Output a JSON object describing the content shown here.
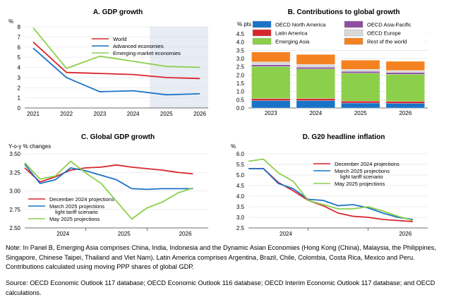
{
  "chart_data": [
    {
      "id": "A",
      "type": "line",
      "title": "A. GDP growth",
      "ylabel": "%",
      "ylim": [
        0,
        8
      ],
      "yticks": [
        0,
        1,
        2,
        3,
        4,
        5,
        6,
        7,
        8
      ],
      "x": [
        "2021",
        "2022",
        "2023",
        "2024",
        "2025",
        "2026"
      ],
      "projection_shading_from": "2025",
      "legend_position": "top-right",
      "series": [
        {
          "name": "World",
          "color": "#d7262e",
          "values": [
            6.5,
            3.5,
            3.4,
            3.3,
            3.0,
            2.9
          ]
        },
        {
          "name": "Advanced economies",
          "color": "#1a73c7",
          "values": [
            5.9,
            3.0,
            1.6,
            1.7,
            1.3,
            1.4
          ]
        },
        {
          "name": "Emerging-market economies",
          "color": "#8ccf4a",
          "values": [
            7.9,
            3.9,
            5.1,
            4.6,
            4.1,
            4.0
          ]
        }
      ]
    },
    {
      "id": "B",
      "type": "bar",
      "stacked": true,
      "title": "B. Contributions to global growth",
      "ylabel": "% pts",
      "ylim": [
        0,
        4.5
      ],
      "yticks": [
        0.0,
        0.5,
        1.0,
        1.5,
        2.0,
        2.5,
        3.0,
        3.5,
        4.0,
        4.5
      ],
      "categories": [
        "2023",
        "2024",
        "2025",
        "2026"
      ],
      "legend_position": "top",
      "series": [
        {
          "name": "OECD North America",
          "color": "#1a73c7",
          "values": [
            0.45,
            0.45,
            0.3,
            0.28
          ]
        },
        {
          "name": "Latin America",
          "color": "#d7262e",
          "values": [
            0.12,
            0.12,
            0.12,
            0.12
          ]
        },
        {
          "name": "Emerging Asia",
          "color": "#8ccf4a",
          "values": [
            1.95,
            1.8,
            1.7,
            1.65
          ]
        },
        {
          "name": "OECD Asia-Pacific",
          "color": "#8e4fa0",
          "values": [
            0.1,
            0.1,
            0.1,
            0.1
          ]
        },
        {
          "name": "OECD Europe",
          "color": "#d9d9d9",
          "values": [
            0.18,
            0.18,
            0.13,
            0.13
          ]
        },
        {
          "name": "Rest of the world",
          "color": "#f58220",
          "values": [
            0.6,
            0.6,
            0.55,
            0.55
          ]
        }
      ]
    },
    {
      "id": "C",
      "type": "line",
      "title": "C. Global GDP growth",
      "ylabel": "Y-o-y % changes",
      "ylim": [
        2.5,
        3.5
      ],
      "yticks": [
        2.5,
        2.75,
        3.0,
        3.25,
        3.5
      ],
      "x_range": [
        0,
        12
      ],
      "x_tick_labels": [
        "2024",
        "2025",
        "2026"
      ],
      "legend_position": "bottom-left",
      "series": [
        {
          "name": "December 2024 projections",
          "color": "#d7262e",
          "x": [
            0,
            1,
            2,
            3,
            4,
            5,
            6,
            7,
            8,
            9,
            10,
            11
          ],
          "values": [
            3.31,
            3.12,
            3.19,
            3.28,
            3.31,
            3.32,
            3.35,
            3.32,
            3.3,
            3.28,
            3.25,
            3.23
          ]
        },
        {
          "name": "March 2025 projections light tariff scenario",
          "color": "#1a73c7",
          "x": [
            0,
            1,
            2,
            3,
            4,
            5,
            6,
            7,
            8,
            9,
            10,
            11
          ],
          "values": [
            3.36,
            3.1,
            3.15,
            3.31,
            3.27,
            3.21,
            3.15,
            3.03,
            3.02,
            3.03,
            3.03,
            3.03
          ]
        },
        {
          "name": "May 2025 projections",
          "color": "#8ccf4a",
          "x": [
            0,
            1,
            2,
            3,
            4,
            5,
            6,
            7,
            8,
            9,
            10,
            11
          ],
          "values": [
            3.38,
            3.16,
            3.2,
            3.4,
            3.24,
            3.1,
            2.86,
            2.62,
            2.77,
            2.85,
            2.97,
            3.04
          ]
        }
      ]
    },
    {
      "id": "D",
      "type": "line",
      "title": "D. G20 headline inflation",
      "ylabel": "%",
      "ylim": [
        2.5,
        6.0
      ],
      "yticks": [
        2.5,
        3.0,
        3.5,
        4.0,
        4.5,
        5.0,
        5.5,
        6.0
      ],
      "x_range": [
        0,
        12
      ],
      "x_tick_labels": [
        "2024",
        "2026"
      ],
      "legend_position": "top-right",
      "series": [
        {
          "name": "December 2024 projections",
          "color": "#d7262e",
          "x": [
            0,
            1,
            2,
            3,
            4,
            5,
            6,
            7,
            8,
            9,
            10,
            11
          ],
          "values": [
            5.3,
            5.3,
            4.65,
            4.25,
            3.8,
            3.55,
            3.2,
            3.05,
            3.0,
            2.9,
            2.85,
            2.8
          ]
        },
        {
          "name": "March 2025 projections light tariff scenario",
          "color": "#1a73c7",
          "x": [
            0,
            1,
            2,
            3,
            4,
            5,
            6,
            7,
            8,
            9,
            10,
            11
          ],
          "values": [
            5.3,
            5.3,
            4.6,
            4.35,
            3.85,
            3.8,
            3.55,
            3.6,
            3.45,
            3.2,
            3.0,
            2.9
          ]
        },
        {
          "name": "May 2025 projections",
          "color": "#8ccf4a",
          "x": [
            0,
            1,
            2,
            3,
            4,
            5,
            6,
            7,
            8,
            9,
            10,
            11
          ],
          "values": [
            5.65,
            5.75,
            5.1,
            4.7,
            3.8,
            3.6,
            3.4,
            3.4,
            3.5,
            3.3,
            3.05,
            2.85
          ]
        }
      ]
    }
  ],
  "notes": {
    "note": "Note: In Panel B, Emerging Asia comprises China, India, Indonesia and the Dynamic Asian Economies (Hong Kong (China), Malaysia, the Philippines, Singapore, Chinese Taipei, Thailand and Viet Nam). Latin America comprises Argentina, Brazil, Chile, Colombia, Costa Rica, Mexico and Peru. Contributions calculated using moving PPP shares of global GDP.",
    "source": "Source: OECD Economic Outlook 117 database; OECD Economic Outlook 116 database; OECD Interim Economic Outlook 117 database; and OECD calculations."
  }
}
